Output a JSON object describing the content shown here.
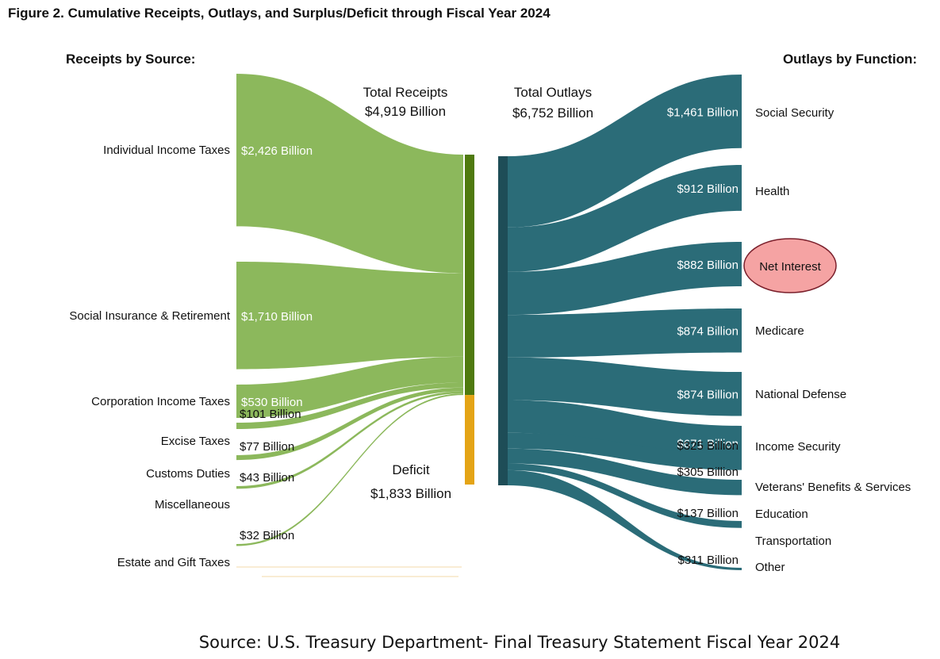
{
  "chart_data": {
    "type": "sankey",
    "title": "Figure 2. Cumulative Receipts, Outlays, and Surplus/Deficit through Fiscal Year 2024",
    "receipts_heading": "Receipts by Source:",
    "outlays_heading": "Outlays by Function:",
    "total_receipts": {
      "label": "Total Receipts",
      "amount": "$4,919 Billion",
      "value": 4919
    },
    "total_outlays": {
      "label": "Total Outlays",
      "amount": "$6,752 Billion",
      "value": 6752
    },
    "deficit": {
      "label": "Deficit",
      "amount": "$1,833 Billion",
      "value": 1833
    },
    "receipts": [
      {
        "name": "Individual Income Taxes",
        "value": 2426,
        "value_label": "$2,426 Billion"
      },
      {
        "name": "Social Insurance & Retirement",
        "value": 1710,
        "value_label": "$1,710 Billion"
      },
      {
        "name": "Corporation Income Taxes",
        "value": 530,
        "value_label": "$530 Billion"
      },
      {
        "name": "Excise Taxes",
        "value": 101,
        "value_label": "$101 Billion"
      },
      {
        "name": "Customs Duties",
        "value": 77,
        "value_label": "$77 Billion"
      },
      {
        "name": "Miscellaneous",
        "value": 43,
        "value_label": "$43 Billion"
      },
      {
        "name": "Estate and Gift Taxes",
        "value": 32,
        "value_label": "$32 Billion"
      }
    ],
    "outlays": [
      {
        "name": "Social Security",
        "value": 1461,
        "value_label": "$1,461 Billion"
      },
      {
        "name": "Health",
        "value": 912,
        "value_label": "$912 Billion"
      },
      {
        "name": "Net Interest",
        "value": 882,
        "value_label": "$882 Billion",
        "highlighted": true
      },
      {
        "name": "Medicare",
        "value": 874,
        "value_label": "$874 Billion"
      },
      {
        "name": "National Defense",
        "value": 874,
        "value_label": "$874 Billion"
      },
      {
        "name": "Income Security",
        "value": 671,
        "value_label": "$671 Billion"
      },
      {
        "name": "Veterans' Benefits & Services",
        "value": 325,
        "value_label": "$325 Billion"
      },
      {
        "name": "Education",
        "value": 305,
        "value_label": "$305 Billion"
      },
      {
        "name": "Transportation",
        "value": 137,
        "value_label": "$137 Billion"
      },
      {
        "name": "Other",
        "value": 311,
        "value_label": "$311 Billion"
      }
    ],
    "colors": {
      "receipts_flow": "#8cb85c",
      "receipts_bar": "#4f7a0f",
      "deficit_bar": "#e4a416",
      "outlays_flow": "#2b6c78",
      "outlays_bar": "#1e4d57",
      "highlight_fill": "#f5a3a3",
      "highlight_stroke": "#7a1f2b"
    }
  },
  "source": "Source:  U.S. Treasury Department- Final Treasury Statement Fiscal Year 2024"
}
